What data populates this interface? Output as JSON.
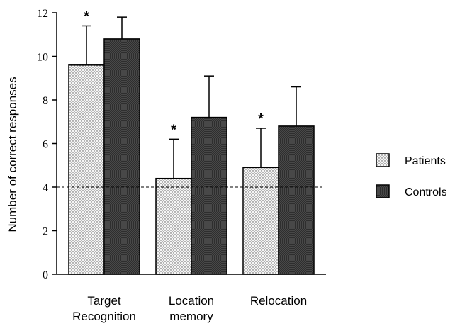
{
  "chart_data": {
    "type": "bar",
    "categories": [
      "Target Recognition",
      "Location memory",
      "Relocation"
    ],
    "category_lines": [
      [
        "Target",
        "Recognition"
      ],
      [
        "Location",
        "memory"
      ],
      [
        "Relocation"
      ]
    ],
    "series": [
      {
        "name": "Patients",
        "values": [
          9.6,
          4.4,
          4.9
        ],
        "errors": [
          1.8,
          1.8,
          1.8
        ],
        "significant": [
          true,
          true,
          true
        ]
      },
      {
        "name": "Controls",
        "values": [
          10.8,
          7.2,
          6.8
        ],
        "errors": [
          1.0,
          1.9,
          1.8
        ],
        "significant": [
          false,
          false,
          false
        ]
      }
    ],
    "significance_marker": "*",
    "reference_line": 4,
    "ylabel": "Number of correct responses",
    "xlabel": "",
    "ylim": [
      0,
      12
    ],
    "yticks": [
      0,
      2,
      4,
      6,
      8,
      10,
      12
    ],
    "legend": {
      "position": "right",
      "entries": [
        "Patients",
        "Controls"
      ]
    },
    "grid": false,
    "patterns": {
      "Patients": "light-dotted",
      "Controls": "dark-stippled"
    },
    "colors": {
      "Patients": "#f2f2f2",
      "Controls": "#3a3a3a",
      "axis": "#000000"
    }
  }
}
